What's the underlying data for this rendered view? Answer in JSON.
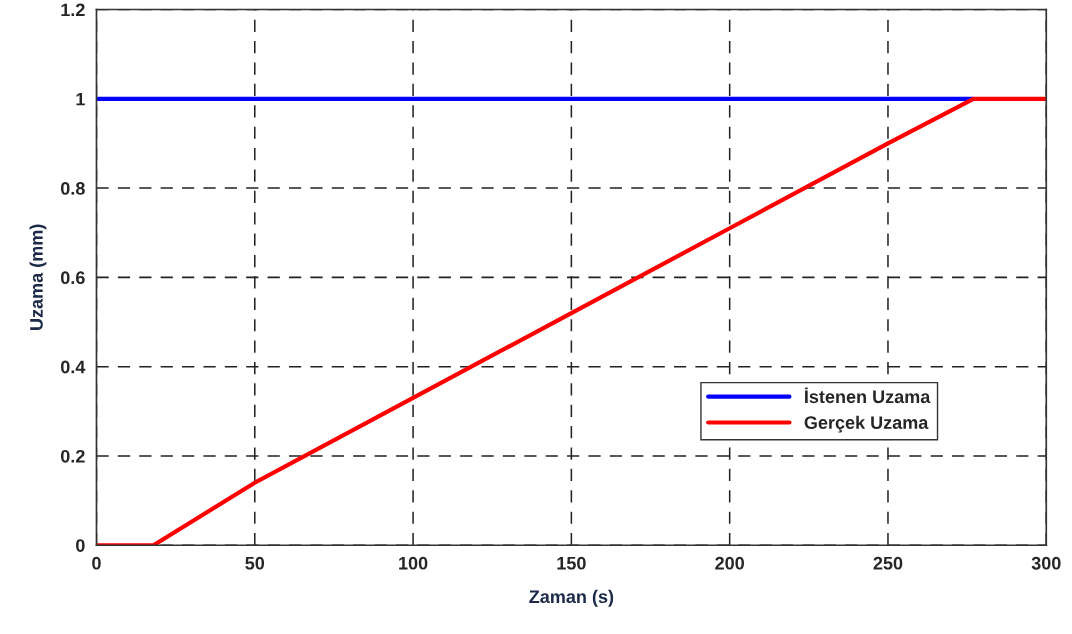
{
  "chart_data": {
    "type": "line",
    "xlabel": "Zaman (s)",
    "ylabel": "Uzama (mm)",
    "series": [
      {
        "name": "İstenen Uzama",
        "color": "#0000ff",
        "x": [
          0,
          277
        ],
        "values": [
          1,
          1
        ]
      },
      {
        "name": "Gerçek Uzama",
        "color": "#ff0000",
        "x": [
          0,
          18,
          50,
          100,
          150,
          200,
          250,
          277,
          300
        ],
        "values": [
          0,
          0,
          0.14,
          0.33,
          0.52,
          0.71,
          0.9,
          1,
          1
        ]
      }
    ],
    "xlim": [
      0,
      300
    ],
    "xticks": [
      0,
      50,
      100,
      150,
      200,
      250,
      300
    ],
    "ylim": [
      0,
      1.2
    ],
    "yticks": [
      0,
      0.2,
      0.4,
      0.6,
      0.8,
      1,
      1.2
    ],
    "grid": true,
    "legend": "lower right",
    "marker": "none",
    "line_style": "solid"
  }
}
